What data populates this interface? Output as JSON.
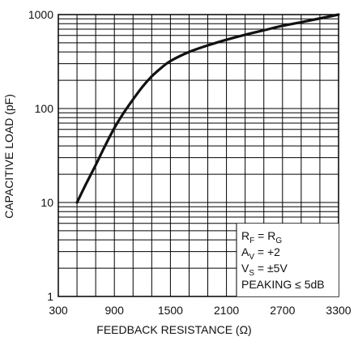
{
  "chart_data": {
    "type": "line",
    "title": "",
    "xlabel": "FEEDBACK RESISTANCE (Ω)",
    "ylabel": "CAPACITIVE LOAD (pF)",
    "xlim": [
      300,
      3300
    ],
    "ylim": [
      1,
      1000
    ],
    "yscale": "log",
    "grid": true,
    "x_ticks": [
      300,
      900,
      1500,
      2100,
      2700,
      3300
    ],
    "x_tick_labels": [
      "300",
      "900",
      "1500",
      "2100",
      "2700",
      "3300"
    ],
    "y_ticks": [
      1,
      10,
      100,
      1000
    ],
    "y_tick_labels": [
      "1",
      "10",
      "100",
      "1000"
    ],
    "series": [
      {
        "x": [
          500,
          600,
          700,
          800,
          900,
          1000,
          1100,
          1200,
          1300,
          1400,
          1500,
          1700,
          1900,
          2100,
          2300,
          2500,
          2700,
          2900,
          3100,
          3300
        ],
        "y": [
          10,
          16,
          25,
          40,
          62,
          90,
          125,
          170,
          220,
          270,
          320,
          400,
          470,
          540,
          610,
          680,
          760,
          830,
          910,
          1000
        ]
      }
    ],
    "annotations": [
      {
        "text": "R",
        "sub": "F",
        "mid": " = R",
        "sub2": "G"
      },
      {
        "text": "A",
        "sub": "V",
        "mid": " = +2",
        "sub2": ""
      },
      {
        "text": "V",
        "sub": "S",
        "mid": " = ±5V",
        "sub2": ""
      },
      {
        "text": "PEAKING ≤ 5dB",
        "sub": "",
        "mid": "",
        "sub2": ""
      }
    ],
    "annotation_position": "bottom-right"
  }
}
